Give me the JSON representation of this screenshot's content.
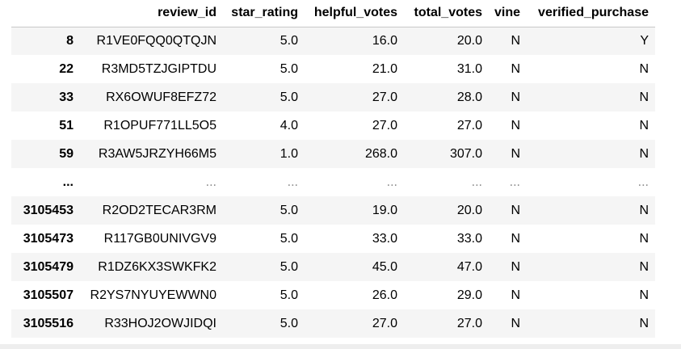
{
  "table": {
    "columns": [
      "review_id",
      "star_rating",
      "helpful_votes",
      "total_votes",
      "vine",
      "verified_purchase"
    ],
    "rows": [
      {
        "index": "8",
        "cells": [
          "R1VE0FQQ0QTQJN",
          "5.0",
          "16.0",
          "20.0",
          "N",
          "Y"
        ]
      },
      {
        "index": "22",
        "cells": [
          "R3MD5TZJGIPTDU",
          "5.0",
          "21.0",
          "31.0",
          "N",
          "N"
        ]
      },
      {
        "index": "33",
        "cells": [
          "RX6OWUF8EFZ72",
          "5.0",
          "27.0",
          "28.0",
          "N",
          "N"
        ]
      },
      {
        "index": "51",
        "cells": [
          "R1OPUF771LL5O5",
          "4.0",
          "27.0",
          "27.0",
          "N",
          "N"
        ]
      },
      {
        "index": "59",
        "cells": [
          "R3AW5JRZYH66M5",
          "1.0",
          "268.0",
          "307.0",
          "N",
          "N"
        ]
      },
      {
        "index": "...",
        "cells": [
          "...",
          "...",
          "...",
          "...",
          "...",
          "..."
        ]
      },
      {
        "index": "3105453",
        "cells": [
          "R2OD2TECAR3RM",
          "5.0",
          "19.0",
          "20.0",
          "N",
          "N"
        ]
      },
      {
        "index": "3105473",
        "cells": [
          "R117GB0UNIVGV9",
          "5.0",
          "33.0",
          "33.0",
          "N",
          "N"
        ]
      },
      {
        "index": "3105479",
        "cells": [
          "R1DZ6KX3SWKFK2",
          "5.0",
          "45.0",
          "47.0",
          "N",
          "N"
        ]
      },
      {
        "index": "3105507",
        "cells": [
          "R2YS7NYUYEWWN0",
          "5.0",
          "26.0",
          "29.0",
          "N",
          "N"
        ]
      },
      {
        "index": "3105516",
        "cells": [
          "R33HOJ2OWJIDQI",
          "5.0",
          "27.0",
          "27.0",
          "N",
          "N"
        ]
      }
    ]
  }
}
